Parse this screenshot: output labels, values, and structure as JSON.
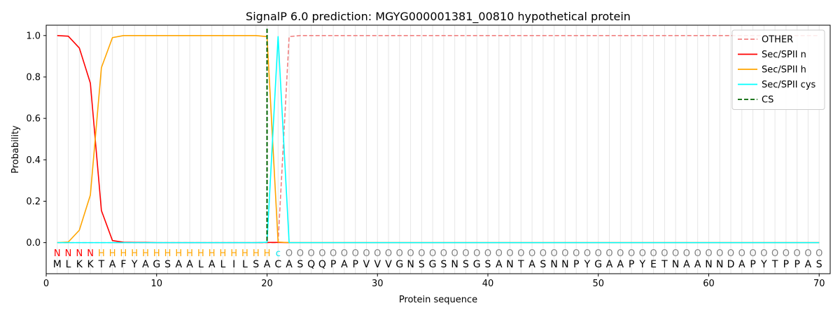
{
  "chart_data": {
    "type": "line",
    "title": "SignalP 6.0 prediction: MGYG000001381_00810 hypothetical protein",
    "xlabel": "Protein sequence",
    "ylabel": "Probability",
    "xlim": [
      0,
      71
    ],
    "ylim": [
      -0.15,
      1.05
    ],
    "xticks": [
      0,
      10,
      20,
      30,
      40,
      50,
      60,
      70
    ],
    "yticks": [
      0.0,
      0.2,
      0.4,
      0.6,
      0.8,
      1.0
    ],
    "ytick_labels": [
      "0.0",
      "0.2",
      "0.4",
      "0.6",
      "0.8",
      "1.0"
    ],
    "legend_position": "top-right",
    "sequence": [
      "M",
      "L",
      "K",
      "K",
      "T",
      "A",
      "F",
      "Y",
      "A",
      "G",
      "S",
      "A",
      "A",
      "L",
      "A",
      "L",
      "I",
      "L",
      "S",
      "A",
      "C",
      "A",
      "S",
      "Q",
      "Q",
      "P",
      "A",
      "P",
      "V",
      "V",
      "V",
      "G",
      "N",
      "S",
      "G",
      "S",
      "N",
      "S",
      "G",
      "S",
      "A",
      "N",
      "T",
      "A",
      "S",
      "N",
      "N",
      "P",
      "Y",
      "G",
      "A",
      "A",
      "P",
      "Y",
      "E",
      "T",
      "N",
      "A",
      "A",
      "N",
      "N",
      "D",
      "A",
      "P",
      "Y",
      "T",
      "P",
      "P",
      "A",
      "S"
    ],
    "regions": [
      "N",
      "N",
      "N",
      "N",
      "H",
      "H",
      "H",
      "H",
      "H",
      "H",
      "H",
      "H",
      "H",
      "H",
      "H",
      "H",
      "H",
      "H",
      "H",
      "H",
      "c",
      "O",
      "O",
      "O",
      "O",
      "O",
      "O",
      "O",
      "O",
      "O",
      "O",
      "O",
      "O",
      "O",
      "O",
      "O",
      "O",
      "O",
      "O",
      "O",
      "O",
      "O",
      "O",
      "O",
      "O",
      "O",
      "O",
      "O",
      "O",
      "O",
      "O",
      "O",
      "O",
      "O",
      "O",
      "O",
      "O",
      "O",
      "O",
      "O",
      "O",
      "O",
      "O",
      "O",
      "O",
      "O",
      "O",
      "O",
      "O",
      "O"
    ],
    "region_colors": {
      "N": "#ff0000",
      "H": "#ffa500",
      "c": "#00e5ee",
      "O": "#808080"
    },
    "cleavage_site": 20,
    "series": [
      {
        "name": "OTHER",
        "color": "#f08080",
        "dash": "dashed",
        "values": [
          0,
          0,
          0,
          0,
          0,
          0,
          0,
          0,
          0,
          0,
          0,
          0,
          0,
          0,
          0,
          0,
          0,
          0,
          0,
          0,
          0,
          0.995,
          1,
          1,
          1,
          1,
          1,
          1,
          1,
          1,
          1,
          1,
          1,
          1,
          1,
          1,
          1,
          1,
          1,
          1,
          1,
          1,
          1,
          1,
          1,
          1,
          1,
          1,
          1,
          1,
          1,
          1,
          1,
          1,
          1,
          1,
          1,
          1,
          1,
          1,
          1,
          1,
          1,
          1,
          1,
          1,
          1,
          1,
          1,
          1
        ]
      },
      {
        "name": "Sec/SPII n",
        "color": "#ff0000",
        "dash": "solid",
        "values": [
          1.0,
          0.997,
          0.94,
          0.77,
          0.155,
          0.01,
          0.002,
          0.001,
          0.001,
          0,
          0,
          0,
          0,
          0,
          0,
          0,
          0,
          0,
          0,
          0.001,
          0.001,
          0,
          0,
          0,
          0,
          0,
          0,
          0,
          0,
          0,
          0,
          0,
          0,
          0,
          0,
          0,
          0,
          0,
          0,
          0,
          0,
          0,
          0,
          0,
          0,
          0,
          0,
          0,
          0,
          0,
          0,
          0,
          0,
          0,
          0,
          0,
          0,
          0,
          0,
          0,
          0,
          0,
          0,
          0,
          0,
          0,
          0,
          0,
          0,
          0
        ]
      },
      {
        "name": "Sec/SPII h",
        "color": "#ffa500",
        "dash": "solid",
        "values": [
          0,
          0.003,
          0.06,
          0.23,
          0.845,
          0.99,
          1.0,
          1.0,
          1.0,
          1.0,
          1.0,
          1.0,
          1.0,
          1.0,
          1.0,
          1.0,
          1.0,
          1.0,
          1.0,
          0.995,
          0.003,
          0,
          0,
          0,
          0,
          0,
          0,
          0,
          0,
          0,
          0,
          0,
          0,
          0,
          0,
          0,
          0,
          0,
          0,
          0,
          0,
          0,
          0,
          0,
          0,
          0,
          0,
          0,
          0,
          0,
          0,
          0,
          0,
          0,
          0,
          0,
          0,
          0,
          0,
          0,
          0,
          0,
          0,
          0,
          0,
          0,
          0,
          0,
          0,
          0
        ]
      },
      {
        "name": "Sec/SPII cys",
        "color": "#00ffff",
        "dash": "solid",
        "values": [
          0,
          0,
          0,
          0,
          0,
          0,
          0,
          0,
          0,
          0,
          0,
          0,
          0,
          0,
          0,
          0,
          0,
          0,
          0,
          0.002,
          0.995,
          0,
          0,
          0,
          0,
          0,
          0,
          0,
          0,
          0,
          0,
          0,
          0,
          0,
          0,
          0,
          0,
          0,
          0,
          0,
          0,
          0,
          0,
          0,
          0,
          0,
          0,
          0,
          0,
          0,
          0,
          0,
          0,
          0,
          0,
          0,
          0,
          0,
          0,
          0,
          0,
          0,
          0,
          0,
          0,
          0,
          0,
          0,
          0,
          0
        ]
      },
      {
        "name": "CS",
        "color": "#006400",
        "dash": "dashed",
        "kind": "vline",
        "x": 20
      }
    ]
  }
}
